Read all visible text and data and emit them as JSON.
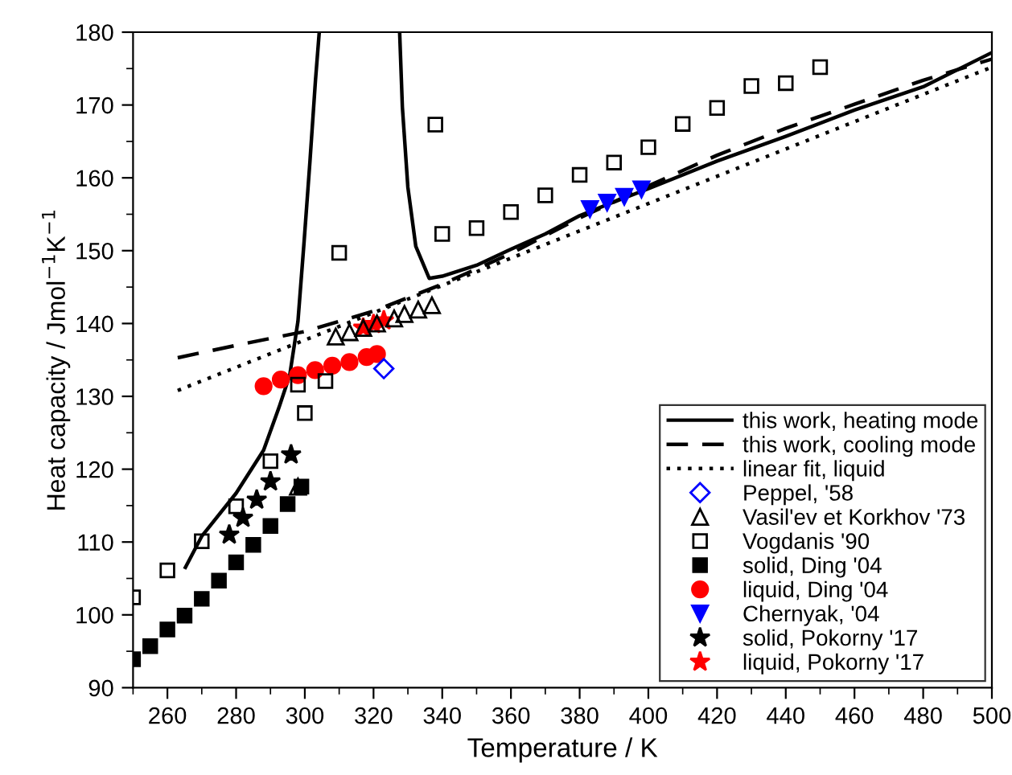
{
  "chart_data": {
    "type": "scatter",
    "xlabel": "Temperature / K",
    "ylabel": "Heat capacity / Jmol$^{−1}$K$^{−1}$",
    "xlim": [
      250,
      500
    ],
    "xticks": [
      260,
      280,
      300,
      320,
      340,
      360,
      380,
      400,
      420,
      440,
      460,
      480,
      500
    ],
    "ylim": [
      90,
      180
    ],
    "yticks": [
      90,
      100,
      110,
      120,
      130,
      140,
      150,
      160,
      170,
      180
    ],
    "grid": false,
    "legend": "bottom right",
    "series": [
      {
        "name": "this work, heating mode",
        "type": "line",
        "line_style": "solid",
        "marker": "none",
        "color": "#000000",
        "x": [
          265,
          270,
          280,
          288,
          292.5,
          295.6,
          298,
          299.8,
          301.5,
          303.1,
          304.2,
          316,
          327.6,
          328.4,
          330,
          332.3,
          336.2,
          340,
          350,
          360,
          370,
          380,
          390,
          400,
          420,
          440,
          460,
          480,
          500
        ],
        "values": [
          106.3,
          110.8,
          116.7,
          122.6,
          128.5,
          132.9,
          140.3,
          151.3,
          162.3,
          173.4,
          180,
          null,
          180,
          169.7,
          158.7,
          150.6,
          146.2,
          146.5,
          148,
          150.2,
          152.3,
          154.8,
          156.7,
          158.5,
          162.3,
          165.7,
          169.3,
          172.5,
          177.2
        ]
      },
      {
        "name": "this work, cooling mode",
        "type": "line",
        "line_style": "dashed",
        "marker": "none",
        "color": "#000000",
        "x": [
          263,
          280,
          300,
          320,
          340,
          360,
          380,
          400,
          420,
          440,
          460,
          480,
          500
        ],
        "values": [
          135.3,
          137,
          138.9,
          141.7,
          145.4,
          149.6,
          154.5,
          158.9,
          163.1,
          166.8,
          170.1,
          173.4,
          176.3
        ]
      },
      {
        "name": "linear fit, liquid",
        "type": "line",
        "line_style": "dotted",
        "marker": "none",
        "color": "#000000",
        "x": [
          263,
          500
        ],
        "values": [
          130.8,
          175.2
        ]
      },
      {
        "name": "Peppel, '58",
        "marker": "diamond_open",
        "color": "#0000ff",
        "x": [
          323
        ],
        "values": [
          133.8
        ]
      },
      {
        "name": "Vasil'ev et Korkhov '73",
        "marker": "triangle_open",
        "color": "#000000",
        "x": [
          298,
          309,
          313,
          317,
          321,
          326,
          329,
          333,
          337
        ],
        "values": [
          117.6,
          138.2,
          138.8,
          139.4,
          140.0,
          140.7,
          141.3,
          141.9,
          142.5
        ]
      },
      {
        "name": "Vogdanis '90",
        "marker": "square_open",
        "color": "#000000",
        "x": [
          250,
          260,
          270,
          280,
          290,
          298,
          300,
          306,
          310,
          338,
          340,
          350,
          360,
          370,
          380,
          390,
          400,
          410,
          420,
          430,
          440,
          450
        ],
        "values": [
          102.4,
          106.1,
          110.1,
          114.9,
          121.1,
          131.6,
          127.7,
          132.1,
          149.7,
          167.3,
          152.3,
          153.1,
          155.3,
          157.6,
          160.4,
          162.1,
          164.2,
          167.4,
          169.6,
          172.6,
          173.0,
          175.2
        ]
      },
      {
        "name": "solid, Ding '04",
        "marker": "square",
        "color": "#000000",
        "x": [
          250,
          255,
          260,
          265,
          270,
          275,
          280,
          285,
          290,
          295,
          299
        ],
        "values": [
          93.9,
          95.7,
          98.0,
          99.9,
          102.2,
          104.7,
          107.2,
          109.6,
          112.2,
          115.2,
          117.6
        ]
      },
      {
        "name": "liquid, Ding '04",
        "marker": "circle",
        "color": "#ff0000",
        "x": [
          288,
          293,
          298,
          303,
          308,
          313,
          318,
          321
        ],
        "values": [
          131.4,
          132.3,
          132.9,
          133.6,
          134.2,
          134.7,
          135.4,
          135.8
        ]
      },
      {
        "name": "Chernyak, '04",
        "marker": "triangle_down",
        "color": "#0000ff",
        "x": [
          383,
          388,
          393,
          398
        ],
        "values": [
          155.7,
          156.6,
          157.4,
          158.4
        ]
      },
      {
        "name": "solid, Pokorny '17",
        "marker": "star",
        "color": "#000000",
        "x": [
          278,
          282,
          286,
          290,
          296
        ],
        "values": [
          111.0,
          113.3,
          115.8,
          118.3,
          122.0
        ]
      },
      {
        "name": "liquid, Pokorny '17",
        "marker": "star",
        "color": "#ff0000",
        "x": [
          317,
          320,
          323
        ],
        "values": [
          139.4,
          139.9,
          140.4
        ]
      }
    ]
  }
}
